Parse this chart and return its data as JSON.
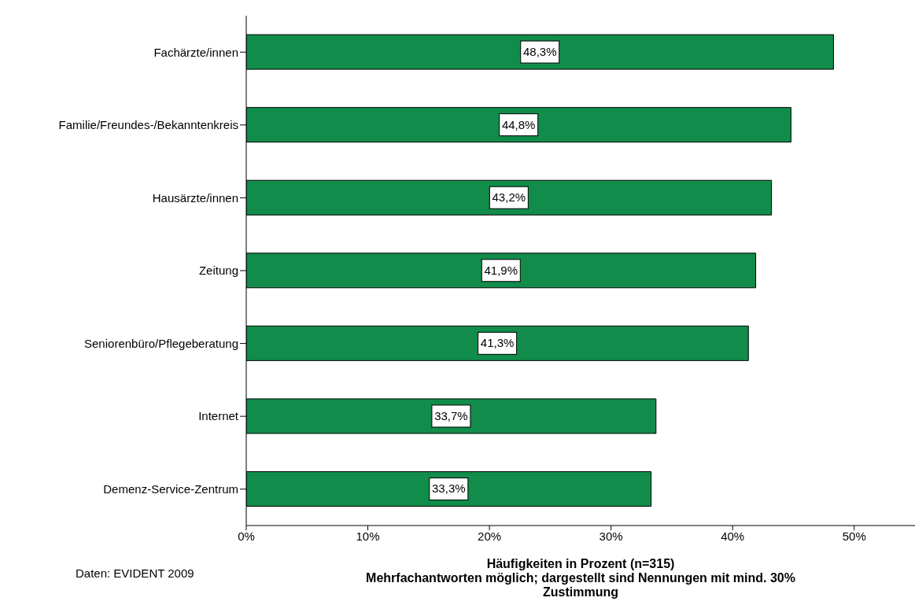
{
  "chart_data": {
    "type": "bar",
    "orientation": "horizontal",
    "xlabel": "Häufigkeiten in Prozent (n=315)",
    "annotations": [
      "Mehrfachantworten möglich; dargestellt sind Nennungen mit mind. 30% Zustimmung",
      "Daten: EVIDENT 2009"
    ],
    "categories": [
      "Fachärzte/innen",
      "Familie/Freundes-/Bekanntenkreis",
      "Hausärzte/innen",
      "Zeitung",
      "Seniorenbüro/Pflegeberatung",
      "Internet",
      "Demenz-Service-Zentrum"
    ],
    "values": [
      48.3,
      44.8,
      43.2,
      41.9,
      41.3,
      33.7,
      33.3
    ],
    "value_labels": [
      "48,3%",
      "44,8%",
      "43,2%",
      "41,9%",
      "41,3%",
      "33,7%",
      "33,3%"
    ],
    "color": "#118c4a",
    "xlim": [
      0,
      55
    ],
    "xticks": [
      {
        "value": 0,
        "label": "0%"
      },
      {
        "value": 10,
        "label": "10%"
      },
      {
        "value": 20,
        "label": "20%"
      },
      {
        "value": 30,
        "label": "30%"
      },
      {
        "value": 40,
        "label": "40%"
      },
      {
        "value": 50,
        "label": "50%"
      }
    ],
    "grid": false,
    "legend": false
  }
}
